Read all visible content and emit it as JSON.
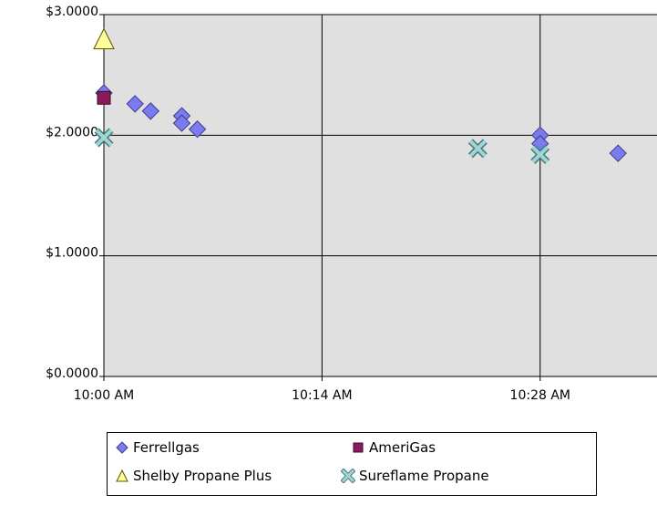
{
  "chart_data": {
    "type": "scatter",
    "xlabel": "",
    "ylabel": "",
    "x_ticks": [
      "10:00 AM",
      "10:14 AM",
      "10:28 AM"
    ],
    "y_ticks": [
      "$0.0000",
      "$1.0000",
      "$2.0000",
      "$3.0000"
    ],
    "x_range_minutes": [
      0,
      35.5
    ],
    "ylim": [
      0,
      3
    ],
    "grid": true,
    "legend_placement": "bottom",
    "series": [
      {
        "name": "Ferrellgas",
        "marker": "diamond",
        "color": "#7b7bef",
        "points": [
          {
            "x": "10:00 AM",
            "y": 2.35
          },
          {
            "x": "10:02 AM",
            "y": 2.26
          },
          {
            "x": "10:03 AM",
            "y": 2.2
          },
          {
            "x": "10:05 AM",
            "y": 2.16
          },
          {
            "x": "10:05 AM",
            "y": 2.1
          },
          {
            "x": "10:06 AM",
            "y": 2.05
          },
          {
            "x": "10:28 AM",
            "y": 2.0
          },
          {
            "x": "10:28 AM",
            "y": 1.93
          },
          {
            "x": "10:33 AM",
            "y": 1.85
          }
        ]
      },
      {
        "name": "AmeriGas",
        "marker": "square",
        "color": "#8b1a5c",
        "points": [
          {
            "x": "10:00 AM",
            "y": 2.31
          }
        ]
      },
      {
        "name": "Shelby Propane Plus",
        "marker": "triangle",
        "color": "#ffff99",
        "points": [
          {
            "x": "10:00 AM",
            "y": 2.8
          }
        ]
      },
      {
        "name": "Sureflame Propane",
        "marker": "x",
        "color": "#9fd5d5",
        "points": [
          {
            "x": "10:00 AM",
            "y": 1.98
          },
          {
            "x": "10:24 AM",
            "y": 1.89
          },
          {
            "x": "10:28 AM",
            "y": 1.84
          }
        ]
      }
    ]
  }
}
